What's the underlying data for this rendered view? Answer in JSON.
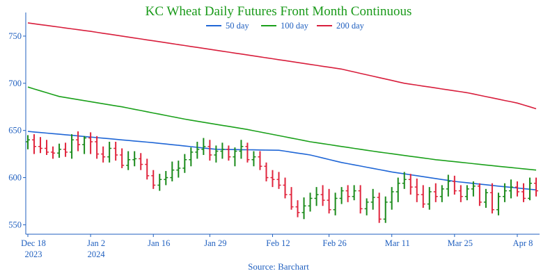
{
  "chart_data": {
    "type": "candlestick",
    "title": "KC Wheat Daily Futures Front Month Continuous",
    "source": "Source: Barchart",
    "colors": {
      "up": "#1a8a1a",
      "down": "#e0243c",
      "ma50": "#1f66d6",
      "ma100": "#1aa01a",
      "ma200": "#d81e3c",
      "axis": "#1f5fbf",
      "title": "#1a9a1a"
    },
    "ylim": [
      540,
      775
    ],
    "yticks": [
      550,
      600,
      650,
      700,
      750
    ],
    "xticks": [
      {
        "index": 0,
        "line1": "Dec 18",
        "line2": "2023"
      },
      {
        "index": 10,
        "line1": "Jan 2",
        "line2": "2024"
      },
      {
        "index": 20,
        "line1": "Jan 16",
        "line2": ""
      },
      {
        "index": 29,
        "line1": "Jan 29",
        "line2": ""
      },
      {
        "index": 39,
        "line1": "Feb 12",
        "line2": ""
      },
      {
        "index": 48,
        "line1": "Feb 26",
        "line2": ""
      },
      {
        "index": 58,
        "line1": "Mar 11",
        "line2": ""
      },
      {
        "index": 68,
        "line1": "Mar 25",
        "line2": ""
      },
      {
        "index": 78,
        "line1": "Apr 8",
        "line2": ""
      }
    ],
    "legend": [
      {
        "name": "50 day",
        "color": "#1f66d6"
      },
      {
        "name": "100 day",
        "color": "#1aa01a"
      },
      {
        "name": "200 day",
        "color": "#d81e3c"
      }
    ],
    "n_bars": 82,
    "ohlc": [
      [
        638,
        645,
        630,
        640
      ],
      [
        640,
        646,
        625,
        633
      ],
      [
        633,
        643,
        626,
        631
      ],
      [
        631,
        640,
        624,
        627
      ],
      [
        627,
        633,
        620,
        626
      ],
      [
        626,
        636,
        621,
        630
      ],
      [
        630,
        637,
        622,
        627
      ],
      [
        627,
        646,
        620,
        640
      ],
      [
        640,
        649,
        628,
        635
      ],
      [
        635,
        644,
        625,
        642
      ],
      [
        642,
        648,
        625,
        638
      ],
      [
        638,
        644,
        620,
        625
      ],
      [
        625,
        633,
        616,
        622
      ],
      [
        622,
        638,
        616,
        631
      ],
      [
        631,
        638,
        618,
        624
      ],
      [
        624,
        631,
        610,
        613
      ],
      [
        613,
        628,
        608,
        619
      ],
      [
        619,
        628,
        612,
        620
      ],
      [
        620,
        626,
        608,
        614
      ],
      [
        614,
        620,
        598,
        602
      ],
      [
        602,
        608,
        588,
        592
      ],
      [
        592,
        604,
        586,
        598
      ],
      [
        598,
        607,
        592,
        600
      ],
      [
        600,
        617,
        596,
        608
      ],
      [
        608,
        618,
        600,
        610
      ],
      [
        610,
        625,
        605,
        619
      ],
      [
        619,
        632,
        612,
        627
      ],
      [
        627,
        638,
        620,
        630
      ],
      [
        630,
        642,
        624,
        633
      ],
      [
        633,
        640,
        618,
        624
      ],
      [
        624,
        634,
        616,
        628
      ],
      [
        628,
        637,
        620,
        630
      ],
      [
        630,
        634,
        618,
        622
      ],
      [
        622,
        632,
        612,
        628
      ],
      [
        628,
        640,
        620,
        633
      ],
      [
        633,
        637,
        616,
        619
      ],
      [
        619,
        628,
        612,
        622
      ],
      [
        622,
        628,
        608,
        612
      ],
      [
        612,
        616,
        596,
        600
      ],
      [
        600,
        608,
        590,
        598
      ],
      [
        598,
        606,
        588,
        592
      ],
      [
        592,
        600,
        578,
        582
      ],
      [
        582,
        590,
        566,
        569
      ],
      [
        569,
        576,
        558,
        563
      ],
      [
        563,
        579,
        556,
        570
      ],
      [
        570,
        584,
        564,
        578
      ],
      [
        578,
        590,
        570,
        582
      ],
      [
        582,
        592,
        570,
        576
      ],
      [
        576,
        588,
        562,
        566
      ],
      [
        566,
        584,
        560,
        578
      ],
      [
        578,
        590,
        572,
        586
      ],
      [
        586,
        592,
        574,
        580
      ],
      [
        580,
        592,
        576,
        586
      ],
      [
        586,
        592,
        562,
        567
      ],
      [
        567,
        578,
        560,
        574
      ],
      [
        574,
        588,
        566,
        579
      ],
      [
        579,
        584,
        552,
        556
      ],
      [
        556,
        580,
        552,
        574
      ],
      [
        574,
        590,
        566,
        585
      ],
      [
        585,
        600,
        574,
        594
      ],
      [
        594,
        606,
        588,
        598
      ],
      [
        598,
        604,
        582,
        590
      ],
      [
        590,
        599,
        574,
        582
      ],
      [
        582,
        592,
        568,
        572
      ],
      [
        572,
        590,
        566,
        585
      ],
      [
        585,
        594,
        574,
        580
      ],
      [
        580,
        592,
        574,
        588
      ],
      [
        588,
        603,
        580,
        596
      ],
      [
        596,
        602,
        582,
        586
      ],
      [
        586,
        592,
        574,
        580
      ],
      [
        580,
        592,
        576,
        588
      ],
      [
        588,
        596,
        580,
        591
      ],
      [
        591,
        594,
        570,
        574
      ],
      [
        574,
        588,
        568,
        584
      ],
      [
        584,
        594,
        562,
        566
      ],
      [
        566,
        584,
        560,
        580
      ],
      [
        580,
        594,
        574,
        586
      ],
      [
        586,
        598,
        578,
        590
      ],
      [
        590,
        596,
        580,
        585
      ],
      [
        585,
        594,
        574,
        578
      ],
      [
        578,
        600,
        576,
        594
      ],
      [
        594,
        600,
        580,
        586
      ]
    ],
    "series": [
      {
        "name": "50 day",
        "values_anchor": [
          [
            0,
            649
          ],
          [
            10,
            643
          ],
          [
            20,
            637
          ],
          [
            30,
            630
          ],
          [
            40,
            629
          ],
          [
            45,
            624
          ],
          [
            50,
            616
          ],
          [
            58,
            606
          ],
          [
            68,
            596
          ],
          [
            75,
            591
          ],
          [
            81,
            587
          ]
        ]
      },
      {
        "name": "100 day",
        "values_anchor": [
          [
            0,
            696
          ],
          [
            5,
            686
          ],
          [
            15,
            675
          ],
          [
            25,
            662
          ],
          [
            35,
            651
          ],
          [
            45,
            638
          ],
          [
            55,
            628
          ],
          [
            65,
            619
          ],
          [
            75,
            612
          ],
          [
            81,
            608
          ]
        ]
      },
      {
        "name": "200 day",
        "values_anchor": [
          [
            0,
            764
          ],
          [
            10,
            755
          ],
          [
            20,
            745
          ],
          [
            30,
            735
          ],
          [
            40,
            725
          ],
          [
            50,
            715
          ],
          [
            60,
            700
          ],
          [
            70,
            690
          ],
          [
            78,
            679
          ],
          [
            81,
            673
          ]
        ]
      }
    ]
  }
}
